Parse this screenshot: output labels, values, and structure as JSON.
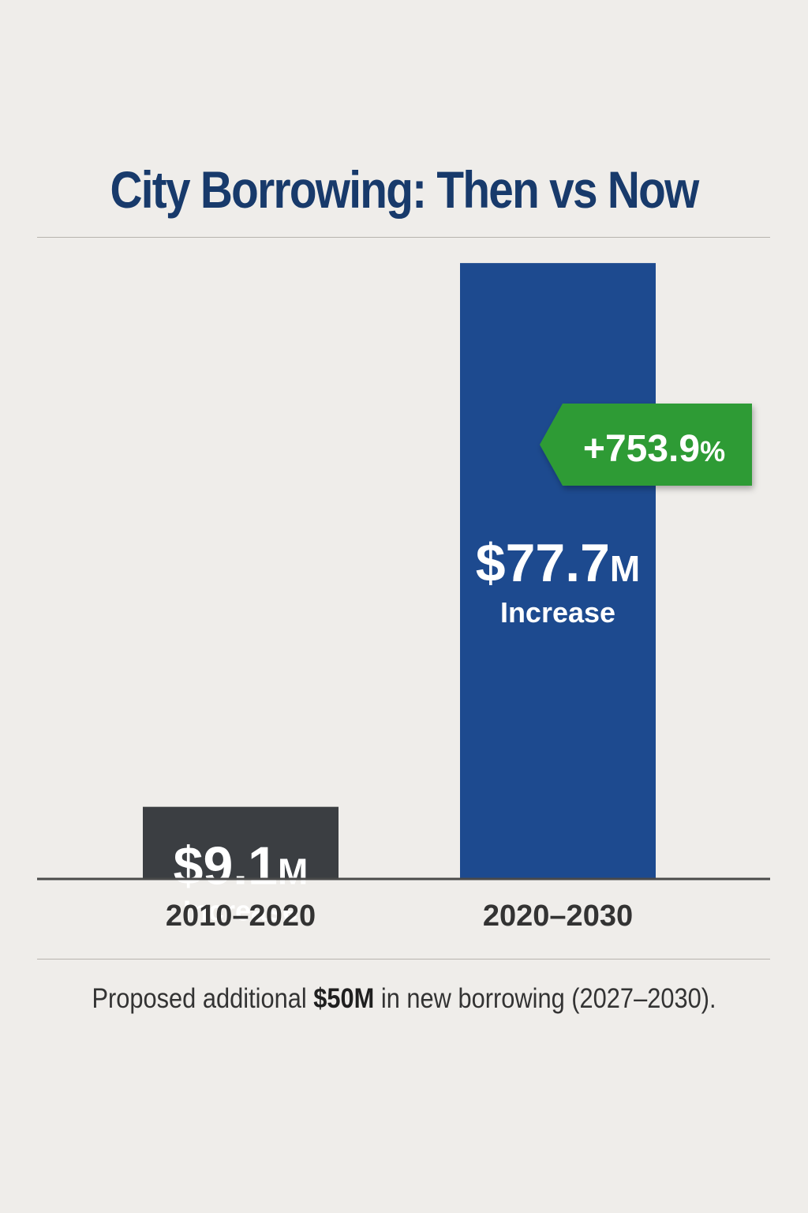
{
  "chart_data": {
    "type": "bar",
    "title": "City Borrowing: Then vs Now",
    "categories": [
      "2010–2020",
      "2020–2030"
    ],
    "values": [
      9.1,
      77.7
    ],
    "value_labels": [
      "$9.1",
      "$77.7"
    ],
    "value_suffix": "M",
    "bar_caption": "Increase",
    "annotation": "+753.9",
    "annotation_suffix": "%",
    "ylim": [
      0,
      81
    ],
    "xlabel": "",
    "ylabel": "",
    "colors": {
      "bar_then": "#3b3e42",
      "bar_now": "#1d4a8f",
      "badge": "#2e9b34",
      "title": "#183a6b",
      "axis": "#4a4a4a",
      "tick_text": "#333333",
      "value_text": "#ffffff"
    }
  },
  "footnote": {
    "prefix": "Proposed additional ",
    "amount": "$50M",
    "suffix": " in new borrowing (2027–2030)."
  }
}
